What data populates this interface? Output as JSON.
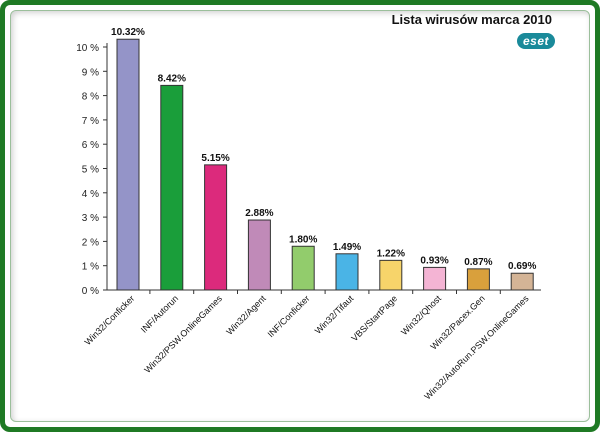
{
  "header": {
    "title": "Lista wirusów marca 2010",
    "logo": "eset"
  },
  "chart_data": {
    "type": "bar",
    "title": "Lista wirusów marca 2010",
    "xlabel": "",
    "ylabel": "",
    "categories": [
      "Win32/Conficker",
      "INF/Autorun",
      "Win32/PSW.OnlineGames",
      "Win32/Agent",
      "INF/Conficker",
      "Win32/Tifaut",
      "VBS/StartPage",
      "Win32/Qhost",
      "Win32/Pacex.Gen",
      "Win32/AutoRun.PSW.OnlineGames"
    ],
    "values": [
      10.32,
      8.42,
      5.15,
      2.88,
      1.8,
      1.49,
      1.22,
      0.93,
      0.87,
      0.69
    ],
    "data_labels": [
      "10.32%",
      "8.42%",
      "5.15%",
      "2.88%",
      "1.80%",
      "1.49%",
      "1.22%",
      "0.93%",
      "0.87%",
      "0.69%"
    ],
    "colors": [
      "#9494c8",
      "#1a9e3a",
      "#dc2a7c",
      "#c08ab8",
      "#92cc6c",
      "#4ab4e6",
      "#f7d46a",
      "#f4b4d4",
      "#d9a03c",
      "#d4b496"
    ],
    "ylim": [
      0,
      10
    ],
    "yticks": [
      0,
      1,
      2,
      3,
      4,
      5,
      6,
      7,
      8,
      9,
      10
    ],
    "ytick_labels": [
      "0 %",
      "1 %",
      "2 %",
      "3 %",
      "4 %",
      "5 %",
      "6 %",
      "7 %",
      "8 %",
      "9 %",
      "10 %"
    ],
    "grid": false,
    "legend": "none"
  }
}
